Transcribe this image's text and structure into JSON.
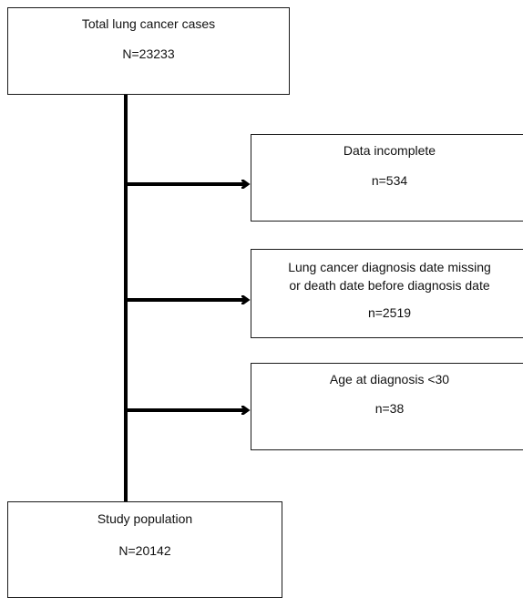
{
  "boxes": {
    "total": {
      "title": "Total lung  cancer cases",
      "count": "N=23233"
    },
    "incomplete": {
      "title": "Data incomplete",
      "count": "n=534"
    },
    "missing_date": {
      "title_line1": "Lung cancer diagnosis  date missing",
      "title_line2": "or death date before diagnosis date",
      "count": "n=2519"
    },
    "age": {
      "title": "Age at diagnosis  <30",
      "count": "n=38"
    },
    "study": {
      "title": "Study population",
      "count": "N=20142"
    }
  }
}
